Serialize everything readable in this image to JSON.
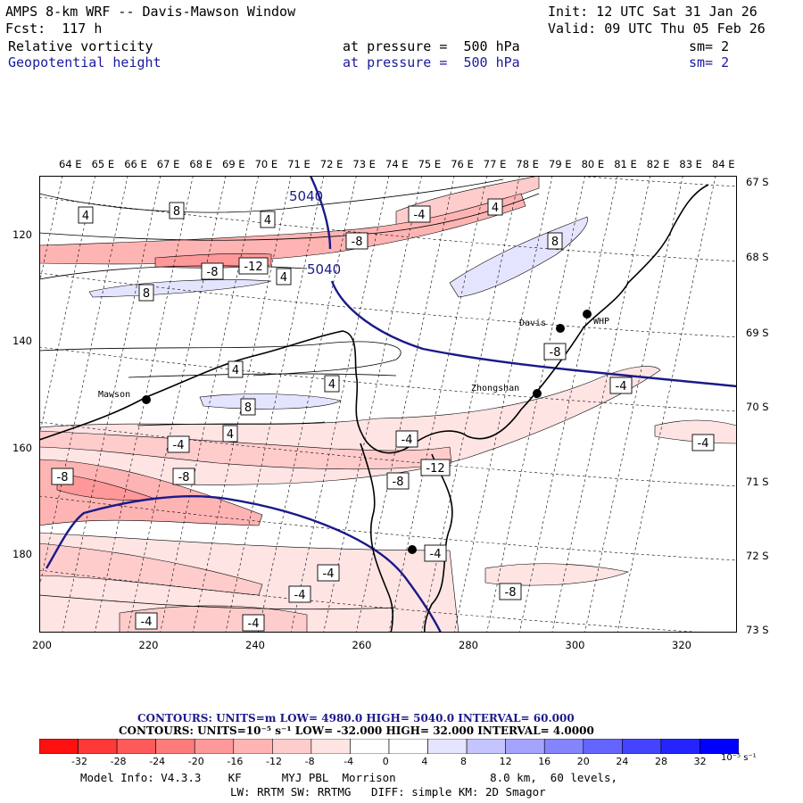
{
  "header": {
    "title": "AMPS 8-km WRF -- Davis-Mawson Window",
    "init": "Init: 12 UTC Sat 31 Jan 26",
    "forecast": "Fcst:  117 h",
    "valid": "Valid: 09 UTC Thu 05 Feb 26",
    "field1_name": "Relative vorticity",
    "field1_level": "at pressure =  500 hPa",
    "field1_sm": "sm= 2",
    "field2_name": "Geopotential height",
    "field2_level": "at pressure =  500 hPa",
    "field2_sm": "sm= 2"
  },
  "axes": {
    "top_lon_labels": [
      "64 E",
      "65 E",
      "66 E",
      "67 E",
      "68 E",
      "69 E",
      "70 E",
      "71 E",
      "72 E",
      "73 E",
      "74 E",
      "75 E",
      "76 E",
      "77 E",
      "78 E",
      "79 E",
      "80 E",
      "81 E",
      "82 E",
      "83 E",
      "84 E"
    ],
    "right_lat_labels": [
      "67 S",
      "68 S",
      "69 S",
      "70 S",
      "71 S",
      "72 S",
      "73 S"
    ],
    "left_y_labels": [
      "120",
      "140",
      "160",
      "180"
    ],
    "bottom_x_labels": [
      "200",
      "220",
      "240",
      "260",
      "280",
      "300",
      "320"
    ]
  },
  "stations": [
    {
      "name": "Mawson"
    },
    {
      "name": "Davis"
    },
    {
      "name": "WHP"
    },
    {
      "name": "Zhongshan"
    },
    {
      "name": ""
    }
  ],
  "height_contour_labels": [
    "5040",
    "5040"
  ],
  "vorticity_labels": [
    "4",
    "8",
    "4",
    "-4",
    "4",
    "-8",
    "8",
    "-8",
    "-12",
    "4",
    "8",
    "4",
    "4",
    "8",
    "4",
    "4",
    "-4",
    "-4",
    "-8",
    "-8",
    "-12",
    "-8",
    "-4",
    "-4",
    "-4",
    "-8",
    "-4",
    "-4",
    "-8",
    "-4",
    "-4"
  ],
  "footer": {
    "contours_height": "CONTOURS:  UNITS=m  LOW=   4980.0      HIGH=  5040.0       INTERVAL=   60.000",
    "contours_vort": "CONTOURS:  UNITS=10⁻⁵ s⁻¹  LOW=  -32.000        HIGH=  32.000          INTERVAL=    4.0000",
    "colorbar_ticks": [
      "-32",
      "-28",
      "-24",
      "-20",
      "-16",
      "-12",
      "-8",
      "-4",
      "0",
      "4",
      "8",
      "12",
      "16",
      "20",
      "24",
      "28",
      "32"
    ],
    "colorbar_unit": "10⁻⁵ s⁻¹",
    "colorbar_colors": [
      "#ff1010",
      "#ff3838",
      "#ff5a5a",
      "#ff7a7a",
      "#ff9898",
      "#ffb4b4",
      "#ffcccc",
      "#ffe4e4",
      "#ffffff",
      "#ffffff",
      "#e4e4ff",
      "#c4c4ff",
      "#a4a4ff",
      "#8484ff",
      "#6464ff",
      "#4444ff",
      "#2424ff",
      "#0000ff"
    ],
    "model_info_1": "Model Info: V4.3.3    KF      MYJ PBL  Morrison              8.0 km,  60 levels,",
    "model_info_2": "LW: RRTM SW: RRTMG   DIFF: simple KM: 2D Smagor"
  }
}
